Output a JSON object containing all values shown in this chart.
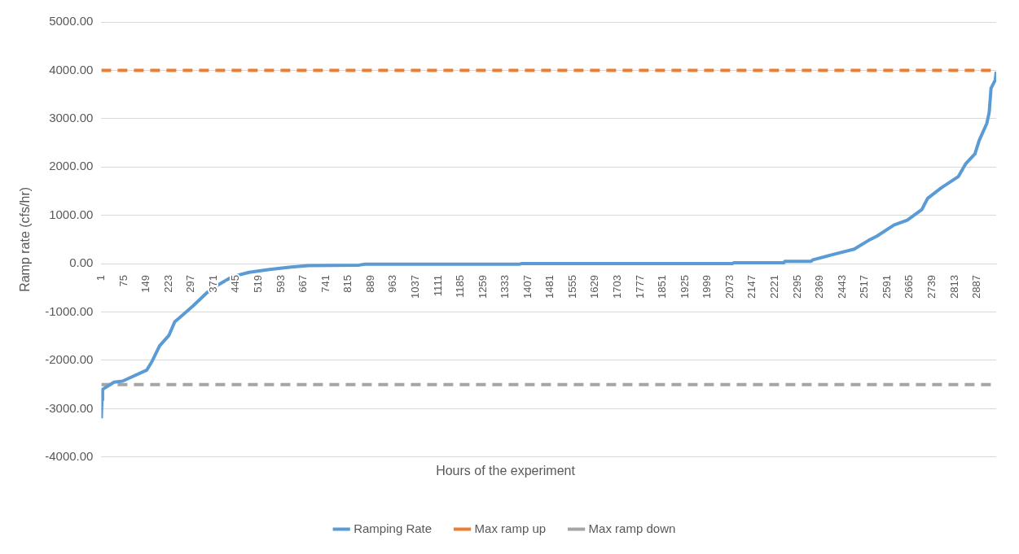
{
  "chart_data": {
    "type": "line",
    "xlabel": "Hours of the experiment",
    "ylabel": "Ramp rate (cfs/hr)",
    "xlim": [
      1,
      2950
    ],
    "xticks": [
      1,
      75,
      149,
      223,
      297,
      371,
      445,
      519,
      593,
      667,
      741,
      815,
      889,
      963,
      1037,
      1111,
      1185,
      1259,
      1333,
      1407,
      1481,
      1555,
      1629,
      1703,
      1777,
      1851,
      1925,
      1999,
      2073,
      2147,
      2221,
      2295,
      2369,
      2443,
      2517,
      2591,
      2665,
      2739,
      2813,
      2887
    ],
    "ylim": [
      -4000,
      5000
    ],
    "yticks": [
      {
        "value": -4000,
        "label": "-4000.00"
      },
      {
        "value": -3000,
        "label": "-3000.00"
      },
      {
        "value": -2000,
        "label": "-2000.00"
      },
      {
        "value": -1000,
        "label": "-1000.00"
      },
      {
        "value": 0,
        "label": "0.00"
      },
      {
        "value": 1000,
        "label": "1000.00"
      },
      {
        "value": 2000,
        "label": "2000.00"
      },
      {
        "value": 3000,
        "label": "3000.00"
      },
      {
        "value": 4000,
        "label": "4000.00"
      },
      {
        "value": 5000,
        "label": "5000.00"
      }
    ],
    "grid": "y",
    "legend": "bottom",
    "marker": "none",
    "series": [
      {
        "name": "Ramping Rate",
        "color": "#5b9bd5",
        "line_style": "solid",
        "x": [
          1,
          3,
          5,
          43,
          71,
          109,
          151,
          168,
          193,
          224,
          243,
          262,
          304,
          349,
          388,
          432,
          488,
          555,
          627,
          683,
          850,
          869,
          1380,
          1385,
          2080,
          2087,
          2250,
          2254,
          2340,
          2346,
          2407,
          2482,
          2529,
          2557,
          2613,
          2657,
          2705,
          2724,
          2769,
          2825,
          2850,
          2880,
          2894,
          2919,
          2927,
          2933,
          2947,
          2950
        ],
        "values": [
          -3200,
          -2820,
          -2600,
          -2450,
          -2430,
          -2320,
          -2200,
          -2020,
          -1700,
          -1480,
          -1200,
          -1100,
          -870,
          -600,
          -430,
          -270,
          -180,
          -120,
          -70,
          -40,
          -30,
          -10,
          -10,
          0,
          0,
          20,
          20,
          50,
          50,
          80,
          180,
          300,
          480,
          570,
          800,
          900,
          1120,
          1350,
          1570,
          1800,
          2070,
          2270,
          2550,
          2900,
          3130,
          3630,
          3800,
          3970
        ]
      },
      {
        "name": "Max ramp up",
        "color": "#ed7d31",
        "line_style": "dashed",
        "x": [
          1,
          2950
        ],
        "values": [
          4000,
          4000
        ]
      },
      {
        "name": "Max ramp down",
        "color": "#a5a5a5",
        "line_style": "dashed",
        "x": [
          1,
          2950
        ],
        "values": [
          -2500,
          -2500
        ]
      }
    ]
  }
}
